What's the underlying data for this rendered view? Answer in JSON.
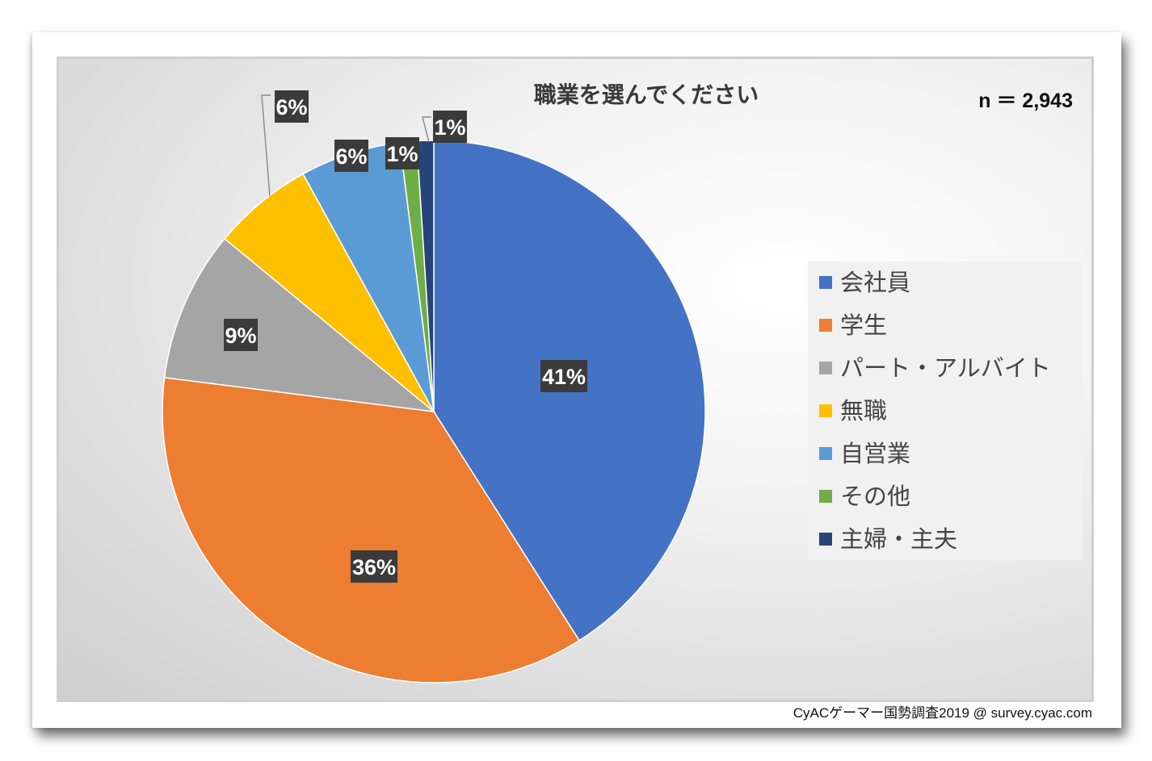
{
  "chart_data": {
    "type": "pie",
    "title": "職業を選んでください",
    "sample_size_label": "n ＝ 2,943",
    "categories": [
      "会社員",
      "学生",
      "パート・アルバイト",
      "無職",
      "自営業",
      "その他",
      "主婦・主夫"
    ],
    "values": [
      41,
      36,
      9,
      6,
      6,
      1,
      1
    ],
    "data_labels": [
      "41%",
      "36%",
      "9%",
      "6%",
      "6%",
      "1%",
      "1%"
    ],
    "unit": "%",
    "colors": [
      "#4472c4",
      "#ed7d31",
      "#a5a5a5",
      "#ffc000",
      "#5b9bd5",
      "#70ad47",
      "#264478"
    ],
    "legend_position": "right",
    "start_angle": "12 o'clock",
    "direction": "clockwise",
    "source": "CyACゲーマー国勢調査2019 @ survey.cyac.com"
  }
}
